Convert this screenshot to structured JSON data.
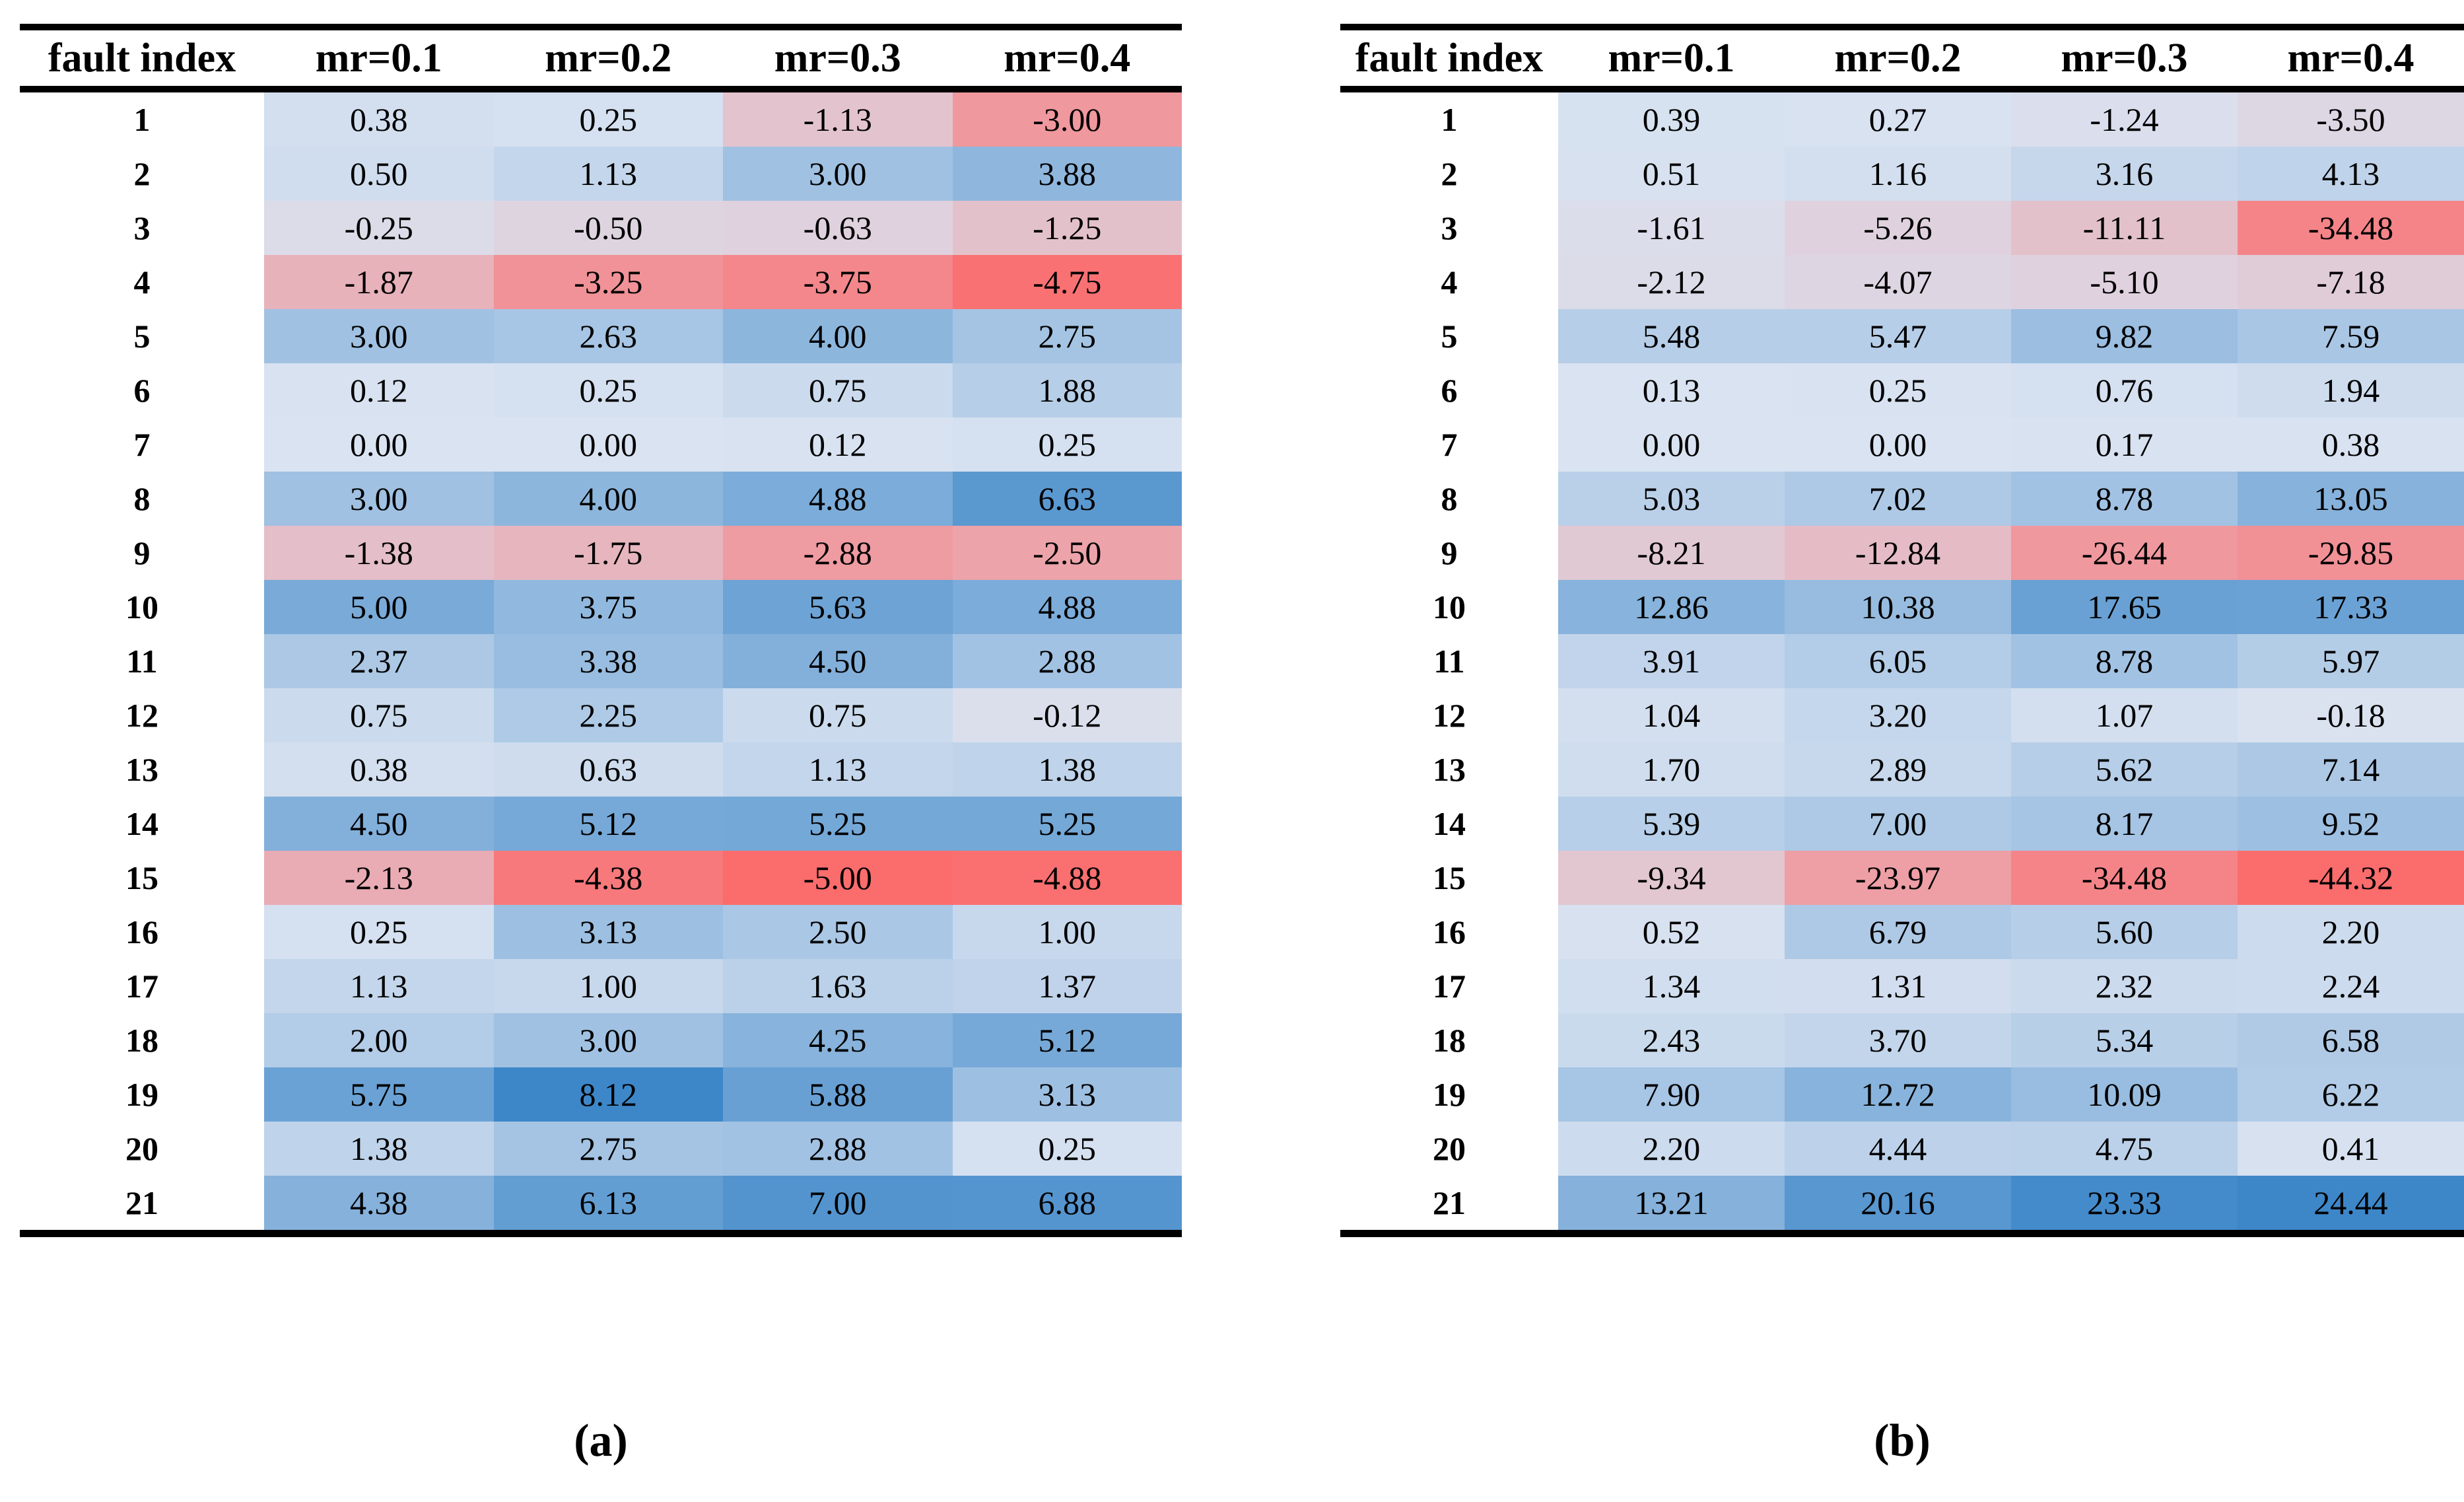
{
  "figure": {
    "background": "#FFFFFF",
    "caption_a": "(a)",
    "caption_b": "(b)"
  },
  "colors": {
    "rule": "#000000",
    "text": "#000000",
    "heat_positive_max": "#3D87C9",
    "heat_zero": "#DAE3F1",
    "heat_negative_min": "#FB6C6D",
    "index_column_background": "#FFFFFF"
  },
  "tables": [
    {
      "id": "a",
      "caption": "(a)",
      "columns": [
        "fault index",
        "mr=0.1",
        "mr=0.2",
        "mr=0.3",
        "mr=0.4"
      ],
      "scale": {
        "min": -5.0,
        "max": 8.12
      },
      "rows": [
        {
          "index": "1",
          "values": [
            "0.38",
            "0.25",
            "-1.13",
            "-3.00"
          ]
        },
        {
          "index": "2",
          "values": [
            "0.50",
            "1.13",
            "3.00",
            "3.88"
          ]
        },
        {
          "index": "3",
          "values": [
            "-0.25",
            "-0.50",
            "-0.63",
            "-1.25"
          ]
        },
        {
          "index": "4",
          "values": [
            "-1.87",
            "-3.25",
            "-3.75",
            "-4.75"
          ]
        },
        {
          "index": "5",
          "values": [
            "3.00",
            "2.63",
            "4.00",
            "2.75"
          ]
        },
        {
          "index": "6",
          "values": [
            "0.12",
            "0.25",
            "0.75",
            "1.88"
          ]
        },
        {
          "index": "7",
          "values": [
            "0.00",
            "0.00",
            "0.12",
            "0.25"
          ]
        },
        {
          "index": "8",
          "values": [
            "3.00",
            "4.00",
            "4.88",
            "6.63"
          ]
        },
        {
          "index": "9",
          "values": [
            "-1.38",
            "-1.75",
            "-2.88",
            "-2.50"
          ]
        },
        {
          "index": "10",
          "values": [
            "5.00",
            "3.75",
            "5.63",
            "4.88"
          ]
        },
        {
          "index": "11",
          "values": [
            "2.37",
            "3.38",
            "4.50",
            "2.88"
          ]
        },
        {
          "index": "12",
          "values": [
            "0.75",
            "2.25",
            "0.75",
            "-0.12"
          ]
        },
        {
          "index": "13",
          "values": [
            "0.38",
            "0.63",
            "1.13",
            "1.38"
          ]
        },
        {
          "index": "14",
          "values": [
            "4.50",
            "5.12",
            "5.25",
            "5.25"
          ]
        },
        {
          "index": "15",
          "values": [
            "-2.13",
            "-4.38",
            "-5.00",
            "-4.88"
          ]
        },
        {
          "index": "16",
          "values": [
            "0.25",
            "3.13",
            "2.50",
            "1.00"
          ]
        },
        {
          "index": "17",
          "values": [
            "1.13",
            "1.00",
            "1.63",
            "1.37"
          ]
        },
        {
          "index": "18",
          "values": [
            "2.00",
            "3.00",
            "4.25",
            "5.12"
          ]
        },
        {
          "index": "19",
          "values": [
            "5.75",
            "8.12",
            "5.88",
            "3.13"
          ]
        },
        {
          "index": "20",
          "values": [
            "1.38",
            "2.75",
            "2.88",
            "0.25"
          ]
        },
        {
          "index": "21",
          "values": [
            "4.38",
            "6.13",
            "7.00",
            "6.88"
          ]
        }
      ]
    },
    {
      "id": "b",
      "caption": "(b)",
      "columns": [
        "fault index",
        "mr=0.1",
        "mr=0.2",
        "mr=0.3",
        "mr=0.4"
      ],
      "scale": {
        "min": -44.32,
        "max": 24.44
      },
      "rows": [
        {
          "index": "1",
          "values": [
            "0.39",
            "0.27",
            "-1.24",
            "-3.50"
          ]
        },
        {
          "index": "2",
          "values": [
            "0.51",
            "1.16",
            "3.16",
            "4.13"
          ]
        },
        {
          "index": "3",
          "values": [
            "-1.61",
            "-5.26",
            "-11.11",
            "-34.48"
          ]
        },
        {
          "index": "4",
          "values": [
            "-2.12",
            "-4.07",
            "-5.10",
            "-7.18"
          ]
        },
        {
          "index": "5",
          "values": [
            "5.48",
            "5.47",
            "9.82",
            "7.59"
          ]
        },
        {
          "index": "6",
          "values": [
            "0.13",
            "0.25",
            "0.76",
            "1.94"
          ]
        },
        {
          "index": "7",
          "values": [
            "0.00",
            "0.00",
            "0.17",
            "0.38"
          ]
        },
        {
          "index": "8",
          "values": [
            "5.03",
            "7.02",
            "8.78",
            "13.05"
          ]
        },
        {
          "index": "9",
          "values": [
            "-8.21",
            "-12.84",
            "-26.44",
            "-29.85"
          ]
        },
        {
          "index": "10",
          "values": [
            "12.86",
            "10.38",
            "17.65",
            "17.33"
          ]
        },
        {
          "index": "11",
          "values": [
            "3.91",
            "6.05",
            "8.78",
            "5.97"
          ]
        },
        {
          "index": "12",
          "values": [
            "1.04",
            "3.20",
            "1.07",
            "-0.18"
          ]
        },
        {
          "index": "13",
          "values": [
            "1.70",
            "2.89",
            "5.62",
            "7.14"
          ]
        },
        {
          "index": "14",
          "values": [
            "5.39",
            "7.00",
            "8.17",
            "9.52"
          ]
        },
        {
          "index": "15",
          "values": [
            "-9.34",
            "-23.97",
            "-34.48",
            "-44.32"
          ]
        },
        {
          "index": "16",
          "values": [
            "0.52",
            "6.79",
            "5.60",
            "2.20"
          ]
        },
        {
          "index": "17",
          "values": [
            "1.34",
            "1.31",
            "2.32",
            "2.24"
          ]
        },
        {
          "index": "18",
          "values": [
            "2.43",
            "3.70",
            "5.34",
            "6.58"
          ]
        },
        {
          "index": "19",
          "values": [
            "7.90",
            "12.72",
            "10.09",
            "6.22"
          ]
        },
        {
          "index": "20",
          "values": [
            "2.20",
            "4.44",
            "4.75",
            "0.41"
          ]
        },
        {
          "index": "21",
          "values": [
            "13.21",
            "20.16",
            "23.33",
            "24.44"
          ]
        }
      ]
    }
  ]
}
